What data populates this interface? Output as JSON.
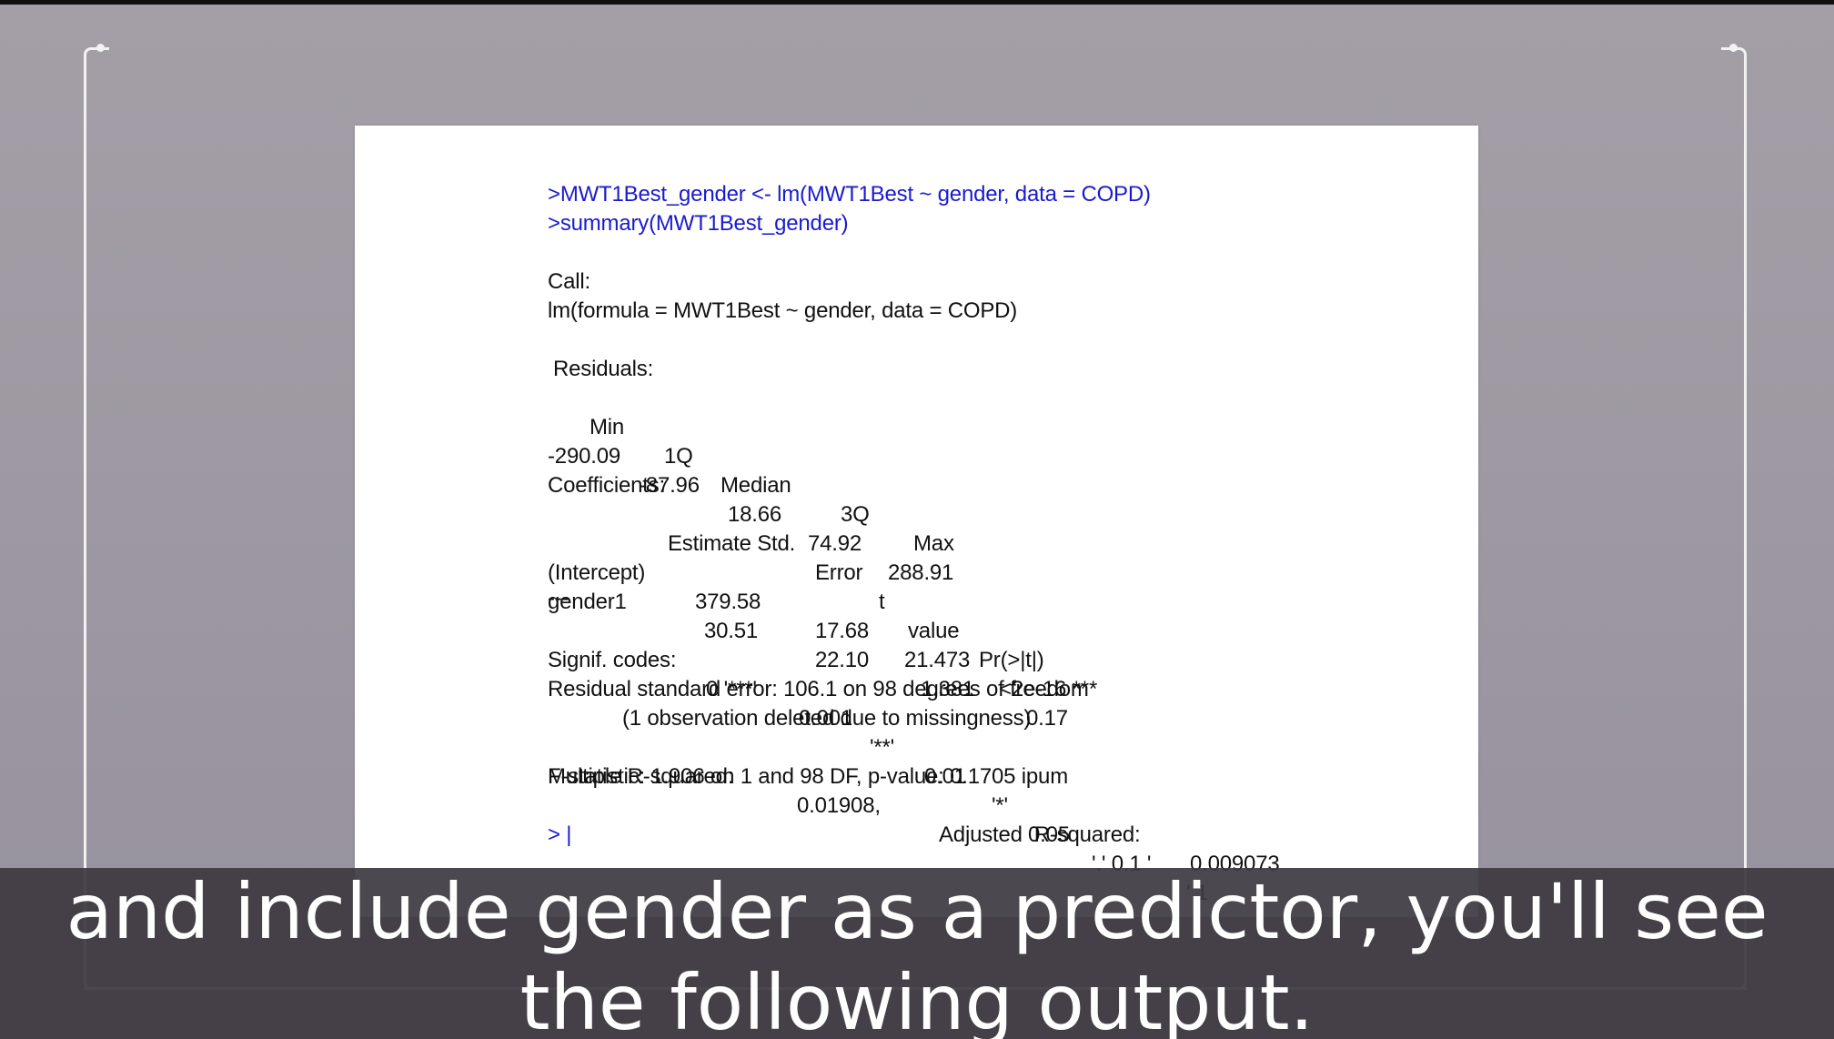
{
  "console": {
    "commands": [
      ">MWT1Best_gender <- lm(MWT1Best ~ gender, data = COPD)",
      ">summary(MWT1Best_gender)"
    ],
    "call_label": "Call:",
    "call_formula": "lm(formula = MWT1Best ~ gender, data = COPD)",
    "residuals_label": "Residuals:",
    "residuals_headers": [
      "Min",
      "1Q",
      "Median",
      "3Q",
      "Max"
    ],
    "residuals_values": [
      "-290.09",
      "-87.96",
      "18.66",
      "74.92",
      "288.91"
    ],
    "coefficients_label": "Coefficients:",
    "coef_headers": [
      "Estimate Std.",
      "Error",
      "t",
      "value",
      "Pr(>|t|)"
    ],
    "coef_rows": [
      {
        "name": "(Intercept)",
        "estimate": "379.58",
        "stderr": "17.68",
        "tvalue": "21.473",
        "p": "<2e-16 ***"
      },
      {
        "name": "gender1",
        "estimate": "30.51",
        "stderr": "22.10",
        "tvalue": "1.381",
        "p": "0.17"
      }
    ],
    "separator": "---",
    "signif_label": "Signif. codes:",
    "signif_parts": [
      "0 '***'",
      "0.001",
      "'**'",
      "0.01",
      "'*'",
      "0.05",
      "'.' 0.1 '",
      "' 1"
    ],
    "rse_line": "Residual standard error: 106.1 on 98 degrees of freedom",
    "missing_line": "(1 observation deleted due to missingness)",
    "r2_label": "Multiple R-squared:",
    "r2_value": "0.01908,",
    "adj_r2_label": "Adjusted  R-squared:",
    "adj_r2_value": "0.009073",
    "fstat_line": "F-statistic: 1.906 on 1 and 98 DF, p-value: 0.1705 ipum",
    "prompt": "> |"
  },
  "caption": {
    "line1": "and include gender as a predictor, you'll see",
    "line2": "the following output."
  },
  "colors": {
    "command": "#1a1ad0",
    "background": "#9d98a1",
    "caption_bg": "#3e3a42"
  }
}
